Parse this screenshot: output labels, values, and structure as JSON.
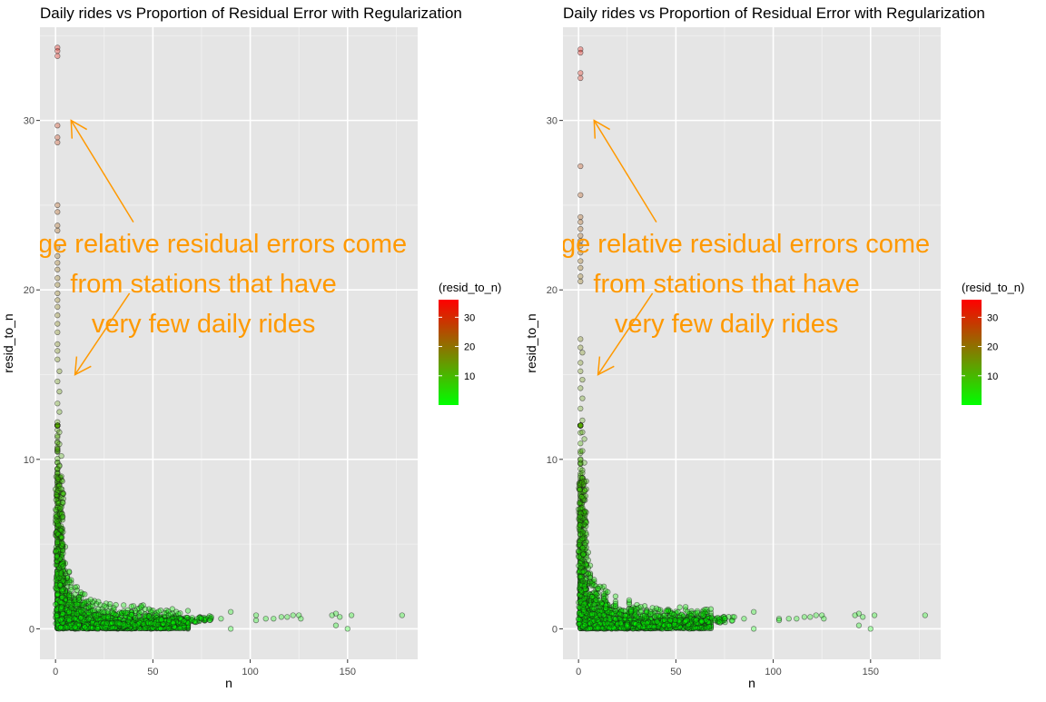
{
  "chart_data": [
    {
      "type": "scatter",
      "title": "Daily rides vs Proportion of Residual Error with Regularization",
      "xlabel": "n",
      "ylabel": "resid_to_n",
      "xlim": [
        -8,
        186
      ],
      "ylim": [
        -1.8,
        35.5
      ],
      "x_ticks": [
        0,
        50,
        100,
        150
      ],
      "y_ticks": [
        0,
        10,
        20,
        30
      ],
      "grid": true,
      "legend": {
        "title": "(resid_to_n)",
        "placement": "right",
        "ticks": [
          10,
          20,
          30
        ],
        "range": [
          0,
          36
        ],
        "gradient_colors": [
          "#00ff00",
          "#808000",
          "#ff0000"
        ]
      },
      "annotation": {
        "lines": [
          "Large relative residual errors come",
          "from stations that have",
          "very few daily rides"
        ],
        "color": "#ff9900",
        "center": [
          76,
          20.4
        ],
        "arrows": [
          {
            "from": [
              40,
              24
            ],
            "to": [
              8,
              30
            ]
          },
          {
            "from": [
              38,
              19.8
            ],
            "to": [
              10,
              15
            ]
          }
        ]
      },
      "point_color": "#00ff00",
      "high_points": [
        {
          "x": 1,
          "y": 34.3
        },
        {
          "x": 1,
          "y": 34.1
        },
        {
          "x": 1,
          "y": 33.8
        },
        {
          "x": 1,
          "y": 29.7
        },
        {
          "x": 1,
          "y": 29
        },
        {
          "x": 1,
          "y": 28.7
        },
        {
          "x": 1,
          "y": 25
        },
        {
          "x": 1,
          "y": 24.6
        },
        {
          "x": 1,
          "y": 23.8
        },
        {
          "x": 1,
          "y": 23.5
        },
        {
          "x": 1,
          "y": 22.5
        },
        {
          "x": 1,
          "y": 22
        },
        {
          "x": 1,
          "y": 21.6
        },
        {
          "x": 1,
          "y": 21.2
        },
        {
          "x": 1,
          "y": 20.7
        },
        {
          "x": 1,
          "y": 20.3
        },
        {
          "x": 1,
          "y": 19.8
        },
        {
          "x": 1,
          "y": 19.4
        },
        {
          "x": 1,
          "y": 19
        },
        {
          "x": 1,
          "y": 18.5
        },
        {
          "x": 1,
          "y": 18
        },
        {
          "x": 1,
          "y": 17.5
        },
        {
          "x": 1,
          "y": 16.8
        },
        {
          "x": 1,
          "y": 16.4
        },
        {
          "x": 1,
          "y": 15.9
        },
        {
          "x": 2,
          "y": 15.2
        },
        {
          "x": 1,
          "y": 14.6
        },
        {
          "x": 2,
          "y": 14
        },
        {
          "x": 1,
          "y": 13.3
        },
        {
          "x": 2,
          "y": 12.8
        },
        {
          "x": 1,
          "y": 12.2
        },
        {
          "x": 2,
          "y": 11.6
        },
        {
          "x": 2,
          "y": 10.9
        },
        {
          "x": 3,
          "y": 10.2
        },
        {
          "x": 2,
          "y": 9.6
        },
        {
          "x": 3,
          "y": 9
        }
      ],
      "tail_points": [
        {
          "x": 70,
          "y": 0.5
        },
        {
          "x": 75,
          "y": 0.6
        },
        {
          "x": 80,
          "y": 0.7
        },
        {
          "x": 85,
          "y": 0.6
        },
        {
          "x": 90,
          "y": 1
        },
        {
          "x": 90,
          "y": 0
        },
        {
          "x": 103,
          "y": 0.8
        },
        {
          "x": 103,
          "y": 0.5
        },
        {
          "x": 108,
          "y": 0.6
        },
        {
          "x": 112,
          "y": 0.6
        },
        {
          "x": 116,
          "y": 0.7
        },
        {
          "x": 119,
          "y": 0.7
        },
        {
          "x": 122,
          "y": 0.8
        },
        {
          "x": 125,
          "y": 0.8
        },
        {
          "x": 126,
          "y": 0.6
        },
        {
          "x": 142,
          "y": 0.8
        },
        {
          "x": 144,
          "y": 0.9
        },
        {
          "x": 146,
          "y": 0.7
        },
        {
          "x": 144,
          "y": 0.2
        },
        {
          "x": 150,
          "y": 0
        },
        {
          "x": 152,
          "y": 0.8
        },
        {
          "x": 178,
          "y": 0.8
        }
      ]
    },
    {
      "type": "scatter",
      "title": "Daily rides vs Proportion of Residual Error with Regularization",
      "xlabel": "n",
      "ylabel": "resid_to_n",
      "xlim": [
        -8,
        186
      ],
      "ylim": [
        -1.8,
        35.5
      ],
      "x_ticks": [
        0,
        50,
        100,
        150
      ],
      "y_ticks": [
        0,
        10,
        20,
        30
      ],
      "grid": true,
      "legend": {
        "title": "(resid_to_n)",
        "placement": "right",
        "ticks": [
          10,
          20,
          30
        ],
        "range": [
          0,
          36
        ],
        "gradient_colors": [
          "#00ff00",
          "#808000",
          "#ff0000"
        ]
      },
      "annotation": {
        "lines": [
          "Large relative residual errors come",
          "from stations that have",
          "very few daily rides"
        ],
        "color": "#ff9900",
        "center": [
          76,
          20.4
        ],
        "arrows": [
          {
            "from": [
              40,
              24
            ],
            "to": [
              8,
              30
            ]
          },
          {
            "from": [
              38,
              19.8
            ],
            "to": [
              10,
              15
            ]
          }
        ]
      },
      "point_color": "#00ff00",
      "high_points": [
        {
          "x": 1,
          "y": 34.2
        },
        {
          "x": 1,
          "y": 34
        },
        {
          "x": 1,
          "y": 32.8
        },
        {
          "x": 1,
          "y": 32.5
        },
        {
          "x": 1,
          "y": 27.3
        },
        {
          "x": 1,
          "y": 25.6
        },
        {
          "x": 1,
          "y": 24.3
        },
        {
          "x": 1,
          "y": 24
        },
        {
          "x": 1,
          "y": 23.6
        },
        {
          "x": 1,
          "y": 23.2
        },
        {
          "x": 1,
          "y": 22.9
        },
        {
          "x": 1,
          "y": 22.6
        },
        {
          "x": 1,
          "y": 22.2
        },
        {
          "x": 1,
          "y": 21.7
        },
        {
          "x": 1,
          "y": 21.3
        },
        {
          "x": 1,
          "y": 20.8
        },
        {
          "x": 1,
          "y": 20.5
        },
        {
          "x": 1,
          "y": 17.1
        },
        {
          "x": 1,
          "y": 16.6
        },
        {
          "x": 2,
          "y": 16.3
        },
        {
          "x": 1,
          "y": 15.7
        },
        {
          "x": 1,
          "y": 15.2
        },
        {
          "x": 2,
          "y": 14.7
        },
        {
          "x": 1,
          "y": 14.2
        },
        {
          "x": 2,
          "y": 13.6
        },
        {
          "x": 1,
          "y": 13
        },
        {
          "x": 2,
          "y": 12.3
        },
        {
          "x": 2,
          "y": 11.6
        },
        {
          "x": 3,
          "y": 11.2
        },
        {
          "x": 2,
          "y": 10.5
        },
        {
          "x": 3,
          "y": 9.8
        },
        {
          "x": 2,
          "y": 9.2
        }
      ],
      "tail_points": [
        {
          "x": 70,
          "y": 0.5
        },
        {
          "x": 75,
          "y": 0.6
        },
        {
          "x": 80,
          "y": 0.7
        },
        {
          "x": 85,
          "y": 0.6
        },
        {
          "x": 90,
          "y": 1
        },
        {
          "x": 90,
          "y": 0
        },
        {
          "x": 103,
          "y": 0.6
        },
        {
          "x": 103,
          "y": 0.5
        },
        {
          "x": 108,
          "y": 0.6
        },
        {
          "x": 112,
          "y": 0.6
        },
        {
          "x": 116,
          "y": 0.7
        },
        {
          "x": 119,
          "y": 0.7
        },
        {
          "x": 122,
          "y": 0.8
        },
        {
          "x": 125,
          "y": 0.8
        },
        {
          "x": 126,
          "y": 0.6
        },
        {
          "x": 142,
          "y": 0.8
        },
        {
          "x": 144,
          "y": 0.9
        },
        {
          "x": 146,
          "y": 0.7
        },
        {
          "x": 144,
          "y": 0.2
        },
        {
          "x": 150,
          "y": 0
        },
        {
          "x": 152,
          "y": 0.8
        },
        {
          "x": 178,
          "y": 0.8
        }
      ]
    }
  ]
}
